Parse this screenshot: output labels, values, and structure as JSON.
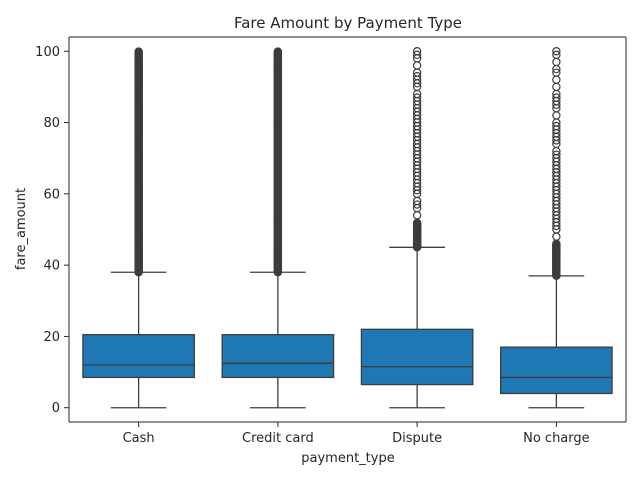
{
  "chart_data": {
    "type": "boxplot",
    "title": "Fare Amount by Payment Type",
    "xlabel": "payment_type",
    "ylabel": "fare_amount",
    "ylim": [
      -4,
      104
    ],
    "yticks": [
      0,
      20,
      40,
      60,
      80,
      100
    ],
    "grid": false,
    "box_color": "#1f77b4",
    "line_color": "#3d3d3d",
    "categories": [
      "Cash",
      "Credit card",
      "Dispute",
      "No charge"
    ],
    "boxes": [
      {
        "category": "Cash",
        "whisker_low": 0,
        "q1": 8.5,
        "median": 12,
        "q3": 20.5,
        "whisker_high": 38,
        "outliers": {
          "dense_from": 38,
          "dense_to": 100,
          "points": []
        }
      },
      {
        "category": "Credit card",
        "whisker_low": 0,
        "q1": 8.5,
        "median": 12.5,
        "q3": 20.5,
        "whisker_high": 38,
        "outliers": {
          "dense_from": 38,
          "dense_to": 100,
          "points": []
        }
      },
      {
        "category": "Dispute",
        "whisker_low": 0,
        "q1": 6.5,
        "median": 11.5,
        "q3": 22,
        "whisker_high": 45,
        "outliers": {
          "dense_from": 45,
          "dense_to": 52,
          "points": [
            54,
            56,
            57,
            58,
            60,
            61,
            62,
            63,
            64,
            65,
            66,
            67,
            68,
            69,
            70,
            71,
            72,
            73,
            74,
            75,
            76,
            77,
            78,
            79,
            80,
            81,
            82,
            83,
            84,
            85,
            86,
            87,
            88,
            90,
            91,
            92,
            93,
            94,
            96,
            98,
            99,
            100
          ]
        }
      },
      {
        "category": "No charge",
        "whisker_low": 0,
        "q1": 4,
        "median": 8.5,
        "q3": 17,
        "whisker_high": 37,
        "outliers": {
          "dense_from": 37,
          "dense_to": 46,
          "points": [
            48,
            50,
            51,
            52,
            53,
            54,
            55,
            56,
            57,
            58,
            59,
            60,
            61,
            62,
            63,
            64,
            65,
            66,
            67,
            68,
            69,
            70,
            71,
            72,
            74,
            75,
            76,
            77,
            78,
            79,
            80,
            82,
            84,
            85,
            86,
            87,
            88,
            90,
            92,
            94,
            95,
            97,
            99,
            100
          ]
        }
      }
    ]
  }
}
